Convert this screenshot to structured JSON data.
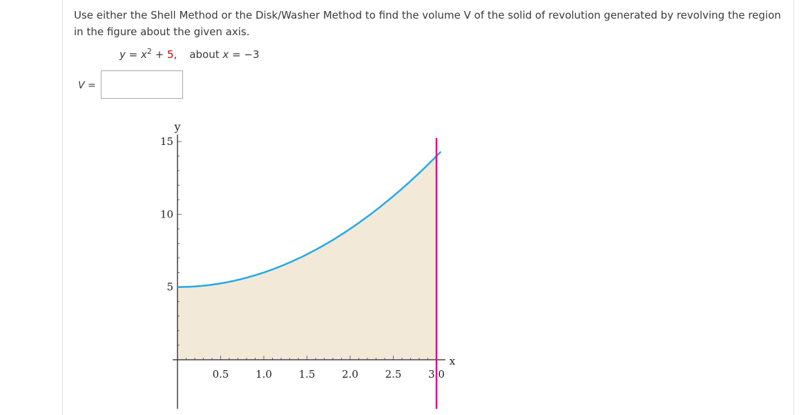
{
  "question": {
    "text": "Use either the Shell Method or the Disk/Washer Method to find the volume V of the solid of revolution generated by revolving the region in the figure about the given axis."
  },
  "equation": {
    "lhs": "y",
    "eq": " = ",
    "var": "x",
    "exp": "2",
    "plus": " + ",
    "const": "5",
    "comma": ",",
    "about_label": "about ",
    "about_var": "x",
    "about_value": " = −3"
  },
  "answer": {
    "label_var": "V",
    "label_eq": " =",
    "value": ""
  },
  "chart_data": {
    "type": "area",
    "function": "y = x^2 + 5",
    "xlabel": "x",
    "ylabel": "y",
    "xlim": [
      0,
      3
    ],
    "ylim": [
      0,
      15
    ],
    "x_ticks": [
      "0.5",
      "1.0",
      "1.5",
      "2.0",
      "2.5",
      "3.0"
    ],
    "y_ticks": [
      "5",
      "10",
      "15"
    ],
    "x": [
      0,
      0.25,
      0.5,
      0.75,
      1.0,
      1.25,
      1.5,
      1.75,
      2.0,
      2.25,
      2.5,
      2.75,
      3.0
    ],
    "y": [
      5,
      5.0625,
      5.25,
      5.5625,
      6,
      6.5625,
      7.25,
      8.0625,
      9,
      10.0625,
      11.25,
      12.5625,
      14
    ],
    "boundary_line": {
      "x": 3,
      "color": "#e6007e"
    },
    "curve_color": "#29abe2",
    "fill_color": "#f3e9d9"
  }
}
